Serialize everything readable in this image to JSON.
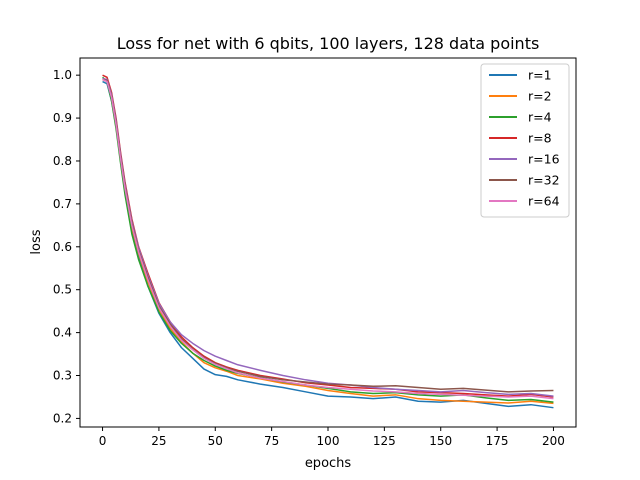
{
  "chart_data": {
    "type": "line",
    "title": "Loss for net with 6 qbits, 100 layers, 128 data points",
    "xlabel": "epochs",
    "ylabel": "loss",
    "xlim": [
      -10,
      210
    ],
    "ylim": [
      0.18,
      1.04
    ],
    "xticks": [
      0,
      25,
      50,
      75,
      100,
      125,
      150,
      175,
      200
    ],
    "yticks": [
      0.2,
      0.3,
      0.4,
      0.5,
      0.6,
      0.7,
      0.8,
      0.9,
      1.0
    ],
    "ytick_labels": [
      "0.2",
      "0.3",
      "0.4",
      "0.5",
      "0.6",
      "0.7",
      "0.8",
      "0.9",
      "1.0"
    ],
    "legend_position": "top-right",
    "grid": false,
    "x": [
      0,
      2,
      4,
      6,
      8,
      10,
      13,
      16,
      20,
      25,
      30,
      35,
      40,
      45,
      50,
      55,
      60,
      70,
      80,
      90,
      100,
      110,
      120,
      130,
      140,
      150,
      160,
      170,
      180,
      190,
      200
    ],
    "series": [
      {
        "name": "r=1",
        "color": "#1f77b4",
        "values": [
          0.985,
          0.98,
          0.94,
          0.88,
          0.8,
          0.73,
          0.64,
          0.58,
          0.51,
          0.445,
          0.4,
          0.365,
          0.34,
          0.315,
          0.302,
          0.298,
          0.29,
          0.28,
          0.272,
          0.262,
          0.252,
          0.25,
          0.246,
          0.25,
          0.24,
          0.238,
          0.242,
          0.235,
          0.228,
          0.232,
          0.225
        ]
      },
      {
        "name": "r=2",
        "color": "#ff7f0e",
        "values": [
          0.99,
          0.985,
          0.945,
          0.885,
          0.805,
          0.735,
          0.645,
          0.585,
          0.52,
          0.455,
          0.41,
          0.378,
          0.352,
          0.33,
          0.318,
          0.31,
          0.3,
          0.292,
          0.282,
          0.275,
          0.265,
          0.258,
          0.252,
          0.255,
          0.246,
          0.242,
          0.24,
          0.238,
          0.236,
          0.24,
          0.235
        ]
      },
      {
        "name": "r=4",
        "color": "#2ca02c",
        "values": [
          0.995,
          0.985,
          0.94,
          0.875,
          0.795,
          0.72,
          0.63,
          0.57,
          0.51,
          0.448,
          0.405,
          0.375,
          0.352,
          0.335,
          0.322,
          0.312,
          0.305,
          0.295,
          0.285,
          0.278,
          0.27,
          0.262,
          0.258,
          0.26,
          0.255,
          0.252,
          0.255,
          0.248,
          0.242,
          0.244,
          0.238
        ]
      },
      {
        "name": "r=8",
        "color": "#d62728",
        "values": [
          1.0,
          0.995,
          0.96,
          0.9,
          0.82,
          0.75,
          0.665,
          0.6,
          0.54,
          0.47,
          0.425,
          0.39,
          0.365,
          0.345,
          0.33,
          0.32,
          0.312,
          0.3,
          0.292,
          0.283,
          0.278,
          0.272,
          0.27,
          0.268,
          0.262,
          0.26,
          0.258,
          0.255,
          0.252,
          0.256,
          0.25
        ]
      },
      {
        "name": "r=16",
        "color": "#9467bd",
        "values": [
          0.992,
          0.99,
          0.955,
          0.895,
          0.815,
          0.745,
          0.66,
          0.598,
          0.535,
          0.468,
          0.425,
          0.395,
          0.375,
          0.358,
          0.345,
          0.335,
          0.325,
          0.312,
          0.3,
          0.29,
          0.282,
          0.278,
          0.272,
          0.268,
          0.265,
          0.262,
          0.265,
          0.26,
          0.256,
          0.258,
          0.252
        ]
      },
      {
        "name": "r=32",
        "color": "#8c564b",
        "values": [
          0.99,
          0.988,
          0.95,
          0.89,
          0.81,
          0.74,
          0.655,
          0.592,
          0.53,
          0.462,
          0.42,
          0.385,
          0.362,
          0.342,
          0.328,
          0.318,
          0.31,
          0.298,
          0.29,
          0.285,
          0.28,
          0.278,
          0.275,
          0.276,
          0.272,
          0.268,
          0.27,
          0.266,
          0.262,
          0.264,
          0.265
        ]
      },
      {
        "name": "r=64",
        "color": "#e377c2",
        "values": [
          0.99,
          0.985,
          0.948,
          0.885,
          0.805,
          0.735,
          0.65,
          0.588,
          0.525,
          0.458,
          0.415,
          0.382,
          0.36,
          0.34,
          0.326,
          0.316,
          0.306,
          0.294,
          0.286,
          0.278,
          0.272,
          0.268,
          0.264,
          0.262,
          0.258,
          0.256,
          0.254,
          0.252,
          0.25,
          0.252,
          0.246
        ]
      }
    ]
  }
}
